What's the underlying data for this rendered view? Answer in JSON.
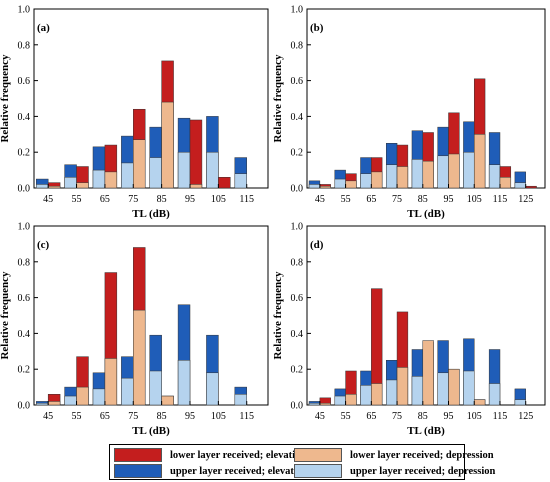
{
  "chart_data": [
    {
      "type": "bar",
      "panel": "(a)",
      "categories": [
        "45",
        "55",
        "65",
        "75",
        "85",
        "95",
        "105",
        "115"
      ],
      "ylabel": "Relative frequency",
      "xlabel": "TL (dB)",
      "ylim": [
        0,
        1.0
      ],
      "yticks": [
        "0.0",
        "0.2",
        "0.4",
        "0.6",
        "0.8",
        "1.0"
      ],
      "series": [
        {
          "name": "upper layer received; elevation",
          "values": [
            0.05,
            0.13,
            0.23,
            0.29,
            0.34,
            0.39,
            0.4,
            0.17
          ]
        },
        {
          "name": "upper layer received; depression",
          "values": [
            0.02,
            0.06,
            0.1,
            0.14,
            0.17,
            0.2,
            0.2,
            0.08
          ]
        },
        {
          "name": "lower layer received; elevation",
          "values": [
            0.03,
            0.12,
            0.24,
            0.44,
            0.71,
            0.38,
            0.06,
            0.0
          ]
        },
        {
          "name": "lower layer received; depression",
          "values": [
            0.01,
            0.03,
            0.09,
            0.27,
            0.48,
            0.02,
            0.0,
            0.0
          ]
        }
      ]
    },
    {
      "type": "bar",
      "panel": "(b)",
      "categories": [
        "45",
        "55",
        "65",
        "75",
        "85",
        "95",
        "105",
        "115",
        "125"
      ],
      "ylabel": "Relative frequency",
      "xlabel": "TL (dB)",
      "ylim": [
        0,
        1.0
      ],
      "yticks": [
        "0.0",
        "0.2",
        "0.4",
        "0.6",
        "0.8",
        "1.0"
      ],
      "series": [
        {
          "name": "upper layer received; elevation",
          "values": [
            0.04,
            0.1,
            0.17,
            0.25,
            0.32,
            0.34,
            0.37,
            0.31,
            0.09
          ]
        },
        {
          "name": "upper layer received; depression",
          "values": [
            0.02,
            0.05,
            0.08,
            0.13,
            0.16,
            0.18,
            0.2,
            0.13,
            0.03
          ]
        },
        {
          "name": "lower layer received; elevation",
          "values": [
            0.02,
            0.08,
            0.17,
            0.24,
            0.31,
            0.42,
            0.61,
            0.12,
            0.01
          ]
        },
        {
          "name": "lower layer received; depression",
          "values": [
            0.01,
            0.04,
            0.09,
            0.12,
            0.15,
            0.19,
            0.3,
            0.06,
            0.0
          ]
        }
      ]
    },
    {
      "type": "bar",
      "panel": "(c)",
      "categories": [
        "45",
        "55",
        "65",
        "75",
        "85",
        "95",
        "105",
        "115"
      ],
      "ylabel": "Relative frequency",
      "xlabel": "TL (dB)",
      "ylim": [
        0,
        1.0
      ],
      "yticks": [
        "0.0",
        "0.2",
        "0.4",
        "0.6",
        "0.8",
        "1.0"
      ],
      "series": [
        {
          "name": "upper layer received; elevation",
          "values": [
            0.02,
            0.1,
            0.18,
            0.27,
            0.39,
            0.56,
            0.39,
            0.1
          ]
        },
        {
          "name": "upper layer received; depression",
          "values": [
            0.01,
            0.05,
            0.09,
            0.15,
            0.19,
            0.25,
            0.18,
            0.06
          ]
        },
        {
          "name": "lower layer received; elevation",
          "values": [
            0.06,
            0.27,
            0.74,
            0.88,
            0.05,
            0.0,
            0.0,
            0.0
          ]
        },
        {
          "name": "lower layer received; depression",
          "values": [
            0.02,
            0.1,
            0.26,
            0.53,
            0.05,
            0.0,
            0.0,
            0.0
          ]
        }
      ]
    },
    {
      "type": "bar",
      "panel": "(d)",
      "categories": [
        "45",
        "55",
        "65",
        "75",
        "85",
        "95",
        "105",
        "115",
        "125"
      ],
      "ylabel": "Relative frequency",
      "xlabel": "TL (dB)",
      "ylim": [
        0,
        1.0
      ],
      "yticks": [
        "0.0",
        "0.2",
        "0.4",
        "0.6",
        "0.8",
        "1.0"
      ],
      "series": [
        {
          "name": "upper layer received; elevation",
          "values": [
            0.02,
            0.09,
            0.19,
            0.25,
            0.31,
            0.36,
            0.37,
            0.31,
            0.09
          ]
        },
        {
          "name": "upper layer received; depression",
          "values": [
            0.01,
            0.05,
            0.11,
            0.14,
            0.16,
            0.18,
            0.19,
            0.12,
            0.03
          ]
        },
        {
          "name": "lower layer received; elevation",
          "values": [
            0.04,
            0.19,
            0.65,
            0.52,
            0.35,
            0.2,
            0.03,
            0.0,
            0.0
          ]
        },
        {
          "name": "lower layer received; depression",
          "values": [
            0.01,
            0.06,
            0.12,
            0.21,
            0.36,
            0.2,
            0.03,
            0.0,
            0.0
          ]
        }
      ]
    }
  ],
  "legend": [
    {
      "label": "lower layer received; elevation",
      "color": "#c41e1e"
    },
    {
      "label": "lower layer received; depression",
      "color": "#eeb88e"
    },
    {
      "label": "upper layer received; elevation",
      "color": "#1f5db8"
    },
    {
      "label": "upper layer received; depression",
      "color": "#b5d3ee"
    }
  ],
  "colors": {
    "upper_elevation": "#1f5db8",
    "upper_depression": "#b5d3ee",
    "lower_elevation": "#c41e1e",
    "lower_depression": "#eeb88e"
  }
}
